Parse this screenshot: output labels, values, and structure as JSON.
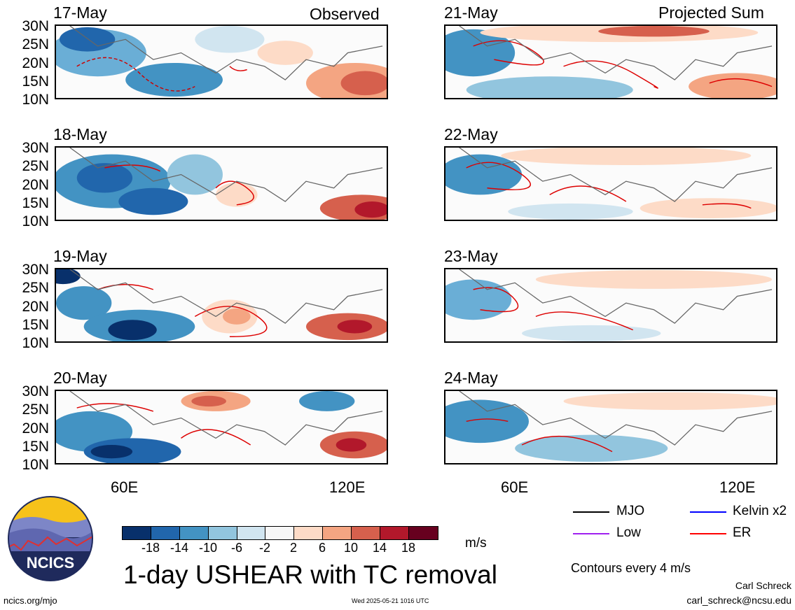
{
  "headers": {
    "left": "Observed",
    "right": "Projected Sum"
  },
  "panels_left": [
    "17-May",
    "18-May",
    "19-May",
    "20-May"
  ],
  "panels_right": [
    "21-May",
    "22-May",
    "23-May",
    "24-May"
  ],
  "lat_ticks": [
    "30N",
    "25N",
    "20N",
    "15N",
    "10N"
  ],
  "lon_ticks": [
    "60E",
    "120E"
  ],
  "colorbar": {
    "labels": [
      "-18",
      "-14",
      "-10",
      "-6",
      "-2",
      "2",
      "6",
      "10",
      "14",
      "18"
    ],
    "colors": [
      "#08306b",
      "#2166ac",
      "#4393c3",
      "#92c5de",
      "#d1e5f0",
      "#f7f7f7",
      "#fddbc7",
      "#f4a582",
      "#d6604d",
      "#b2182b",
      "#67001f"
    ],
    "unit": "m/s"
  },
  "title": "1-day USHEAR with TC removal",
  "legend": [
    {
      "label": "MJO",
      "color": "#000000"
    },
    {
      "label": "Kelvin x2",
      "color": "#0000ff"
    },
    {
      "label": "Low",
      "color": "#a020f0"
    },
    {
      "label": "ER",
      "color": "#ff0000"
    }
  ],
  "contour_note": "Contours every 4 m/s",
  "logo_text": "NCICS",
  "footer": {
    "url": "ncics.org/mjo",
    "timestamp": "Wed 2025-05-21 1016 UTC",
    "author": "Carl Schreck",
    "email": "carl_schreck@ncsu.edu"
  }
}
